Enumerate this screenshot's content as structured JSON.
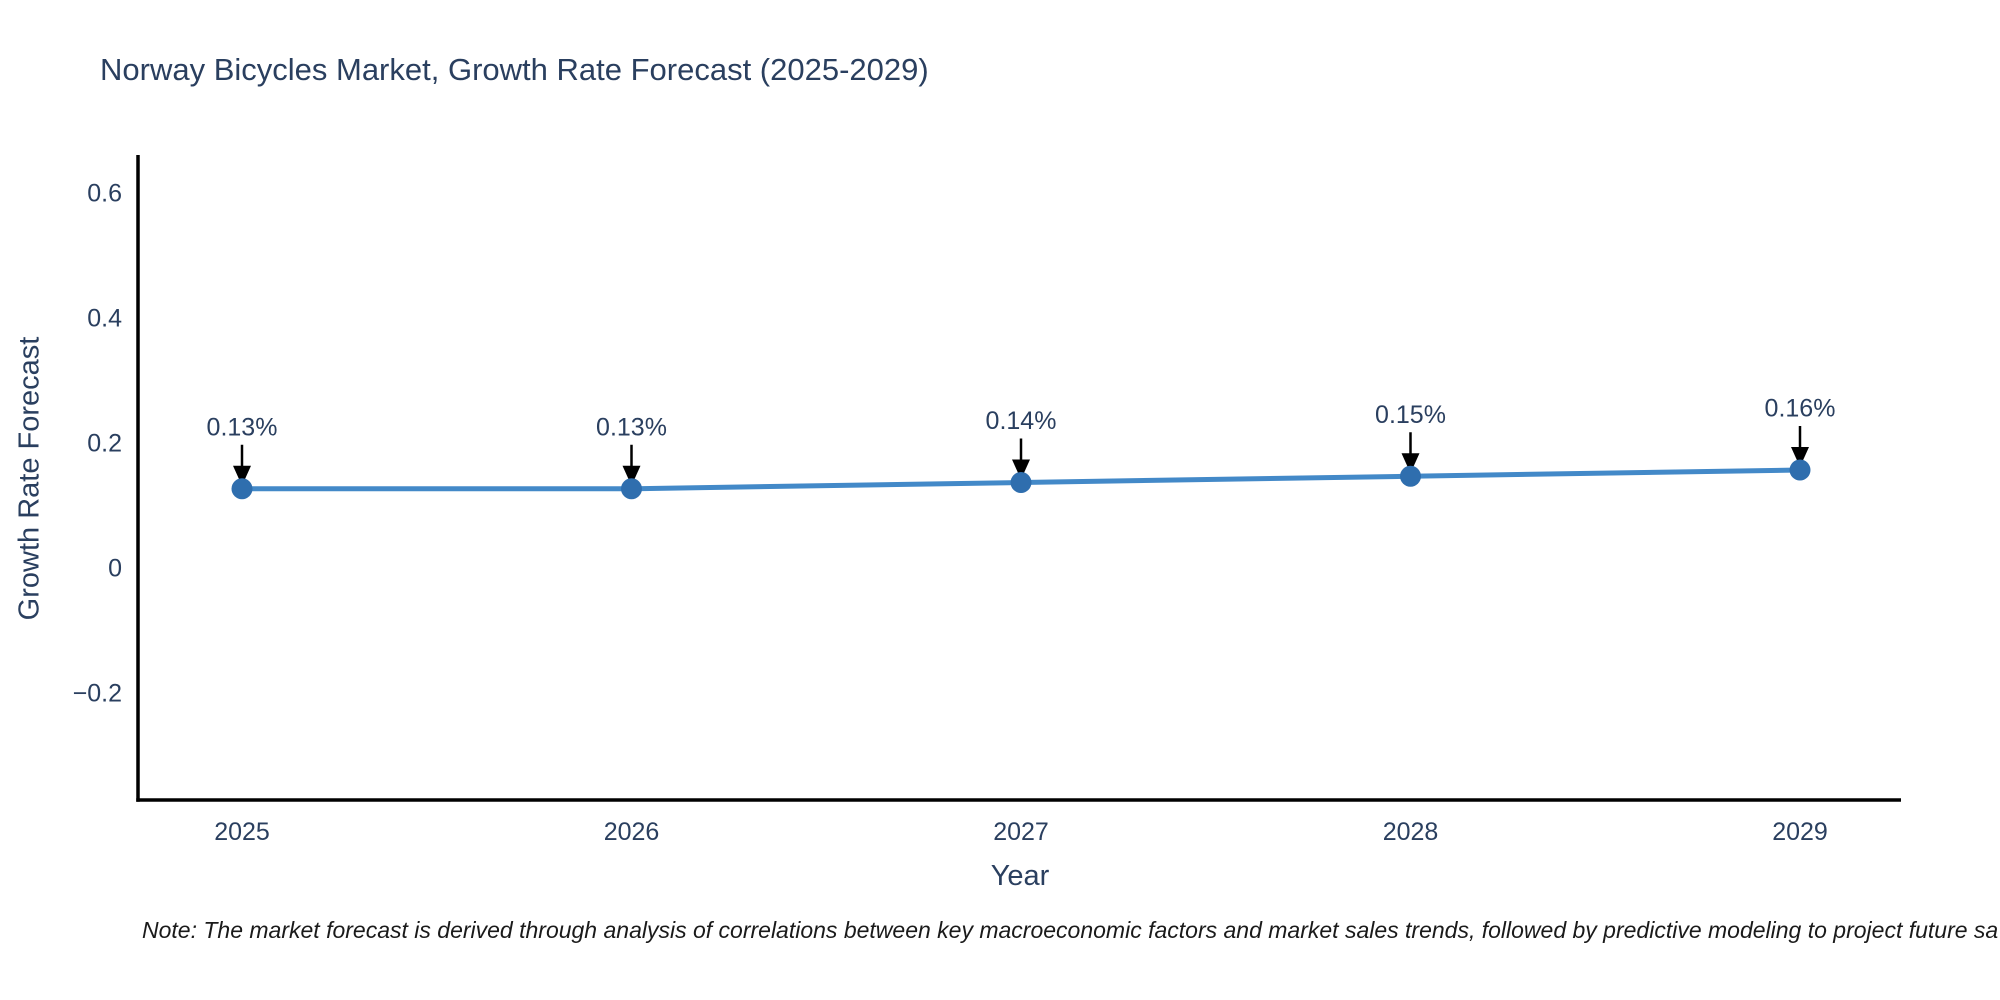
{
  "chart_data": {
    "type": "line",
    "title": "Norway Bicycles Market, Growth Rate Forecast (2025-2029)",
    "xlabel": "Year",
    "ylabel": "Growth Rate Forecast",
    "x": [
      2025,
      2026,
      2027,
      2028,
      2029
    ],
    "values": [
      0.13,
      0.13,
      0.14,
      0.15,
      0.16
    ],
    "point_labels": [
      "0.13%",
      "0.13%",
      "0.14%",
      "0.15%",
      "0.16%"
    ],
    "xtick_labels": [
      "2025",
      "2026",
      "2027",
      "2028",
      "2029"
    ],
    "yticks": [
      0.6,
      0.4,
      0.2,
      0,
      -0.2
    ],
    "ytick_labels": [
      "0.6",
      "0.4",
      "0.2",
      "0",
      "−0.2"
    ],
    "ylim": [
      -0.37,
      0.66
    ],
    "grid": false,
    "legend": false,
    "colors": {
      "line": "#4389c8",
      "marker": "#2f6eae",
      "axis": "#000000",
      "text": "#2a3f5f",
      "annotation_arrow": "#000000"
    }
  },
  "note": {
    "text": "Note: The market forecast is derived through analysis of correlations between key macroeconomic factors and market sales trends, followed by predictive modeling to project future sa"
  }
}
